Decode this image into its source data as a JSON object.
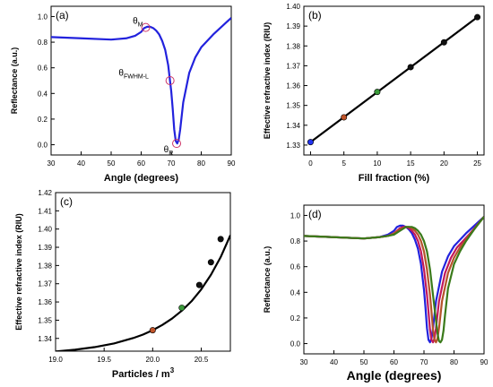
{
  "chart_data": [
    {
      "panel": "(a)",
      "type": "line",
      "xlabel": "Angle (degrees)",
      "ylabel": "Reflectance (a.u.)",
      "xlim": [
        30,
        90
      ],
      "ylim": [
        -0.08,
        1.08
      ],
      "xticks": [
        30,
        40,
        50,
        60,
        70,
        80,
        90
      ],
      "yticks": [
        0.0,
        0.2,
        0.4,
        0.6,
        0.8,
        1.0
      ],
      "ytick_decimals": 1,
      "grid": false,
      "series": [
        {
          "color": "#2222dd",
          "x": [
            30,
            40,
            50,
            55,
            58,
            60,
            61,
            62,
            63,
            64,
            65,
            66,
            67,
            68,
            69,
            70,
            70.5,
            71,
            71.5,
            72,
            72.5,
            73,
            74,
            76,
            78,
            80,
            84,
            90
          ],
          "y": [
            0.84,
            0.83,
            0.82,
            0.83,
            0.85,
            0.88,
            0.91,
            0.92,
            0.92,
            0.91,
            0.89,
            0.86,
            0.81,
            0.74,
            0.62,
            0.42,
            0.28,
            0.12,
            0.03,
            0.01,
            0.04,
            0.12,
            0.33,
            0.56,
            0.68,
            0.76,
            0.86,
            0.99
          ]
        }
      ],
      "annotations": [
        {
          "text": "θ",
          "sub": "M",
          "x": 57.2,
          "y": 0.945
        },
        {
          "text": "θ",
          "sub": "FWHM-L",
          "x": 52.5,
          "y": 0.54
        },
        {
          "text": "θ",
          "sub": "R",
          "x": 67.5,
          "y": -0.06
        }
      ],
      "markers": [
        {
          "x": 61.5,
          "y": 0.915,
          "color": "#cc3366"
        },
        {
          "x": 69.6,
          "y": 0.5,
          "color": "#cc3366"
        },
        {
          "x": 71.8,
          "y": 0.01,
          "color": "#cc3366"
        }
      ]
    },
    {
      "panel": "(b)",
      "type": "line",
      "xlabel": "Fill fraction (%)",
      "ylabel": "Effective refractive index (RIU)",
      "xlim": [
        -1,
        26
      ],
      "ylim": [
        1.325,
        1.4
      ],
      "xticks": [
        0,
        5,
        10,
        15,
        20,
        25
      ],
      "yticks": [
        1.33,
        1.34,
        1.35,
        1.36,
        1.37,
        1.38,
        1.39,
        1.4
      ],
      "ytick_decimals": 2,
      "grid": false,
      "series": [
        {
          "color": "#000000",
          "x": [
            0,
            25
          ],
          "y": [
            1.3315,
            1.3945
          ]
        }
      ],
      "points": [
        {
          "x": 0,
          "y": 1.3315,
          "color": "#2233ee"
        },
        {
          "x": 5,
          "y": 1.344,
          "color": "#c0542a"
        },
        {
          "x": 10,
          "y": 1.3568,
          "color": "#3a9a3a"
        },
        {
          "x": 15,
          "y": 1.3693,
          "color": "#111111"
        },
        {
          "x": 20,
          "y": 1.3818,
          "color": "#111111"
        },
        {
          "x": 25,
          "y": 1.3945,
          "color": "#111111"
        }
      ]
    },
    {
      "panel": "(c)",
      "type": "line",
      "xlabel": "Particles / m",
      "xlabel_sup": "3",
      "ylabel": "Effective refractive index (RIU)",
      "xlim": [
        19.0,
        20.8
      ],
      "ylim": [
        1.333,
        1.42
      ],
      "xticks": [
        19.0,
        19.5,
        20.0,
        20.5
      ],
      "yticks": [
        1.34,
        1.35,
        1.36,
        1.37,
        1.38,
        1.39,
        1.4,
        1.41,
        1.42
      ],
      "xtick_decimals": 1,
      "ytick_decimals": 2,
      "grid": false,
      "series": [
        {
          "color": "#000000",
          "x": [
            19.0,
            19.2,
            19.4,
            19.6,
            19.8,
            19.9,
            20.0,
            20.1,
            20.2,
            20.3,
            20.4,
            20.5,
            20.6,
            20.7,
            20.8
          ],
          "y": [
            1.3328,
            1.3338,
            1.3352,
            1.3372,
            1.3402,
            1.3421,
            1.3445,
            1.3474,
            1.3509,
            1.3552,
            1.3604,
            1.3669,
            1.3749,
            1.3846,
            1.3966
          ]
        }
      ],
      "points": [
        {
          "x": 20.0,
          "y": 1.3445,
          "color": "#c0542a"
        },
        {
          "x": 20.3,
          "y": 1.3568,
          "color": "#3a9a3a"
        },
        {
          "x": 20.48,
          "y": 1.3693,
          "color": "#111111"
        },
        {
          "x": 20.6,
          "y": 1.3818,
          "color": "#111111"
        },
        {
          "x": 20.7,
          "y": 1.3945,
          "color": "#111111"
        }
      ]
    },
    {
      "panel": "(d)",
      "type": "line",
      "xlabel": "Angle (degrees)",
      "ylabel": "Reflectance (a.u.)",
      "xlim": [
        30,
        90
      ],
      "ylim": [
        -0.08,
        1.08
      ],
      "xticks": [
        30,
        40,
        50,
        60,
        70,
        80,
        90
      ],
      "yticks": [
        0.0,
        0.2,
        0.4,
        0.6,
        0.8,
        1.0
      ],
      "ytick_decimals": 1,
      "grid": false,
      "series": [
        {
          "color": "#2222dd",
          "x": [
            30,
            40,
            50,
            55,
            58,
            60,
            61,
            62,
            63,
            64,
            65,
            66,
            67,
            68,
            69,
            70,
            70.5,
            71,
            71.5,
            72,
            72.5,
            73,
            74,
            76,
            78,
            80,
            84,
            90
          ],
          "y": [
            0.84,
            0.83,
            0.82,
            0.83,
            0.85,
            0.88,
            0.91,
            0.92,
            0.92,
            0.91,
            0.89,
            0.86,
            0.81,
            0.74,
            0.62,
            0.42,
            0.28,
            0.12,
            0.03,
            0.01,
            0.04,
            0.12,
            0.33,
            0.56,
            0.68,
            0.76,
            0.86,
            0.99
          ]
        },
        {
          "color": "#c2185b",
          "x": [
            30,
            40,
            50,
            55,
            58,
            60,
            62,
            63,
            64,
            65,
            66,
            67,
            68,
            69,
            70,
            71,
            71.5,
            72,
            72.5,
            73,
            73.5,
            74,
            75,
            77,
            79,
            81,
            85,
            90
          ],
          "y": [
            0.84,
            0.83,
            0.82,
            0.83,
            0.84,
            0.86,
            0.9,
            0.91,
            0.91,
            0.9,
            0.88,
            0.85,
            0.8,
            0.72,
            0.58,
            0.38,
            0.25,
            0.11,
            0.03,
            0.01,
            0.04,
            0.12,
            0.33,
            0.55,
            0.67,
            0.75,
            0.85,
            0.99
          ]
        },
        {
          "color": "#b5522a",
          "x": [
            30,
            40,
            50,
            55,
            58,
            60,
            62,
            63,
            64,
            65,
            66,
            67,
            68,
            69,
            70,
            71,
            72,
            72.5,
            73,
            73.5,
            74,
            74.5,
            75,
            76,
            78,
            80,
            82,
            86,
            90
          ],
          "y": [
            0.84,
            0.83,
            0.82,
            0.83,
            0.84,
            0.86,
            0.89,
            0.9,
            0.91,
            0.91,
            0.9,
            0.88,
            0.85,
            0.8,
            0.72,
            0.58,
            0.38,
            0.25,
            0.11,
            0.03,
            0.01,
            0.04,
            0.12,
            0.33,
            0.55,
            0.67,
            0.75,
            0.87,
            0.99
          ]
        },
        {
          "color": "#3a7a1a",
          "x": [
            30,
            40,
            50,
            55,
            58,
            60,
            62,
            64,
            65,
            66,
            67,
            68,
            69,
            70,
            71,
            72,
            73,
            74,
            74.5,
            75,
            75.5,
            76,
            76.5,
            77,
            78,
            80,
            82,
            84,
            87,
            90
          ],
          "y": [
            0.84,
            0.83,
            0.82,
            0.83,
            0.84,
            0.85,
            0.88,
            0.91,
            0.91,
            0.91,
            0.9,
            0.88,
            0.85,
            0.8,
            0.72,
            0.58,
            0.38,
            0.18,
            0.08,
            0.02,
            0.01,
            0.03,
            0.1,
            0.22,
            0.43,
            0.62,
            0.72,
            0.8,
            0.9,
            0.99
          ]
        }
      ]
    }
  ]
}
